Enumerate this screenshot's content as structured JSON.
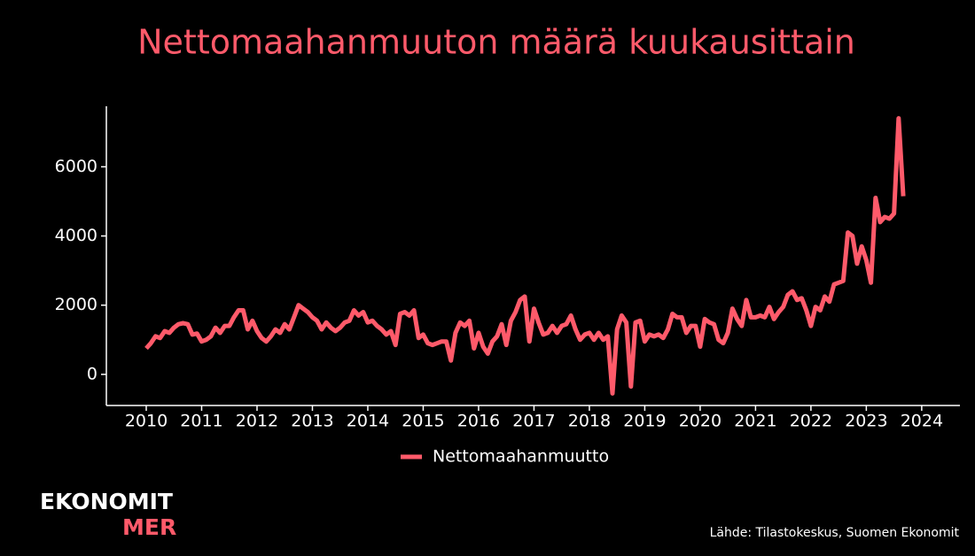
{
  "chart_data": {
    "type": "line",
    "title": "Nettomaahanmuuton määrä kuukausittain",
    "source": "Lähde: Tilastokeskus, Suomen Ekonomit",
    "x": [
      2010,
      2010.083,
      2010.167,
      2010.25,
      2010.333,
      2010.417,
      2010.5,
      2010.583,
      2010.667,
      2010.75,
      2010.833,
      2010.917,
      2011,
      2011.083,
      2011.167,
      2011.25,
      2011.333,
      2011.417,
      2011.5,
      2011.583,
      2011.667,
      2011.75,
      2011.833,
      2011.917,
      2012,
      2012.083,
      2012.167,
      2012.25,
      2012.333,
      2012.417,
      2012.5,
      2012.583,
      2012.667,
      2012.75,
      2012.833,
      2012.917,
      2013,
      2013.083,
      2013.167,
      2013.25,
      2013.333,
      2013.417,
      2013.5,
      2013.583,
      2013.667,
      2013.75,
      2013.833,
      2013.917,
      2014,
      2014.083,
      2014.167,
      2014.25,
      2014.333,
      2014.417,
      2014.5,
      2014.583,
      2014.667,
      2014.75,
      2014.833,
      2014.917,
      2015,
      2015.083,
      2015.167,
      2015.25,
      2015.333,
      2015.417,
      2015.5,
      2015.583,
      2015.667,
      2015.75,
      2015.833,
      2015.917,
      2016,
      2016.083,
      2016.167,
      2016.25,
      2016.333,
      2016.417,
      2016.5,
      2016.583,
      2016.667,
      2016.75,
      2016.833,
      2016.917,
      2017,
      2017.083,
      2017.167,
      2017.25,
      2017.333,
      2017.417,
      2017.5,
      2017.583,
      2017.667,
      2017.75,
      2017.833,
      2017.917,
      2018,
      2018.083,
      2018.167,
      2018.25,
      2018.333,
      2018.417,
      2018.5,
      2018.583,
      2018.667,
      2018.75,
      2018.833,
      2018.917,
      2019,
      2019.083,
      2019.167,
      2019.25,
      2019.333,
      2019.417,
      2019.5,
      2019.583,
      2019.667,
      2019.75,
      2019.833,
      2019.917,
      2020,
      2020.083,
      2020.167,
      2020.25,
      2020.333,
      2020.417,
      2020.5,
      2020.583,
      2020.667,
      2020.75,
      2020.833,
      2020.917,
      2021,
      2021.083,
      2021.167,
      2021.25,
      2021.333,
      2021.417,
      2021.5,
      2021.583,
      2021.667,
      2021.75,
      2021.833,
      2021.917,
      2022,
      2022.083,
      2022.167,
      2022.25,
      2022.333,
      2022.417,
      2022.5,
      2022.583,
      2022.667,
      2022.75,
      2022.833,
      2022.917,
      2023,
      2023.083,
      2023.167,
      2023.25,
      2023.333,
      2023.417,
      2023.5,
      2023.583,
      2023.667
    ],
    "series": [
      {
        "name": "Nettomaahanmuutto",
        "color": "#ff5a6a",
        "values": [
          750,
          900,
          1100,
          1050,
          1250,
          1200,
          1350,
          1450,
          1480,
          1450,
          1150,
          1180,
          950,
          1000,
          1100,
          1350,
          1200,
          1400,
          1400,
          1650,
          1850,
          1850,
          1300,
          1550,
          1250,
          1050,
          950,
          1100,
          1300,
          1200,
          1450,
          1300,
          1650,
          2000,
          1900,
          1800,
          1650,
          1550,
          1300,
          1500,
          1350,
          1250,
          1350,
          1500,
          1550,
          1850,
          1700,
          1800,
          1500,
          1550,
          1400,
          1300,
          1150,
          1250,
          850,
          1750,
          1800,
          1700,
          1850,
          1050,
          1150,
          900,
          850,
          900,
          950,
          950,
          400,
          1200,
          1500,
          1400,
          1550,
          750,
          1200,
          800,
          600,
          950,
          1100,
          1450,
          850,
          1550,
          1800,
          2150,
          2250,
          950,
          1900,
          1500,
          1150,
          1200,
          1400,
          1200,
          1400,
          1450,
          1700,
          1300,
          1000,
          1150,
          1200,
          1000,
          1200,
          1000,
          1100,
          -550,
          1300,
          1700,
          1500,
          -350,
          1500,
          1550,
          950,
          1150,
          1100,
          1150,
          1050,
          1300,
          1750,
          1650,
          1650,
          1200,
          1400,
          1400,
          800,
          1600,
          1500,
          1450,
          1000,
          900,
          1200,
          1900,
          1600,
          1400,
          2150,
          1650,
          1650,
          1700,
          1650,
          1950,
          1600,
          1800,
          1950,
          2300,
          2400,
          2150,
          2200,
          1850,
          1400,
          1950,
          1850,
          2250,
          2100,
          2600,
          2650,
          2700,
          4100,
          4000,
          3200,
          3700,
          3300,
          2650,
          5100,
          4400,
          4550,
          4500,
          4650,
          7400,
          5150
        ]
      }
    ],
    "xlim": [
      2009.28,
      2024.69
    ],
    "xticks": [
      2010,
      2011,
      2012,
      2013,
      2014,
      2015,
      2016,
      2017,
      2018,
      2019,
      2020,
      2021,
      2022,
      2023,
      2024
    ],
    "ylim": [
      -900,
      7750
    ],
    "yticks": [
      0,
      2000,
      4000,
      6000
    ],
    "grid": false,
    "legend": "bottom"
  },
  "logo": {
    "top": "EKONOMIT",
    "bottom": "MER"
  }
}
